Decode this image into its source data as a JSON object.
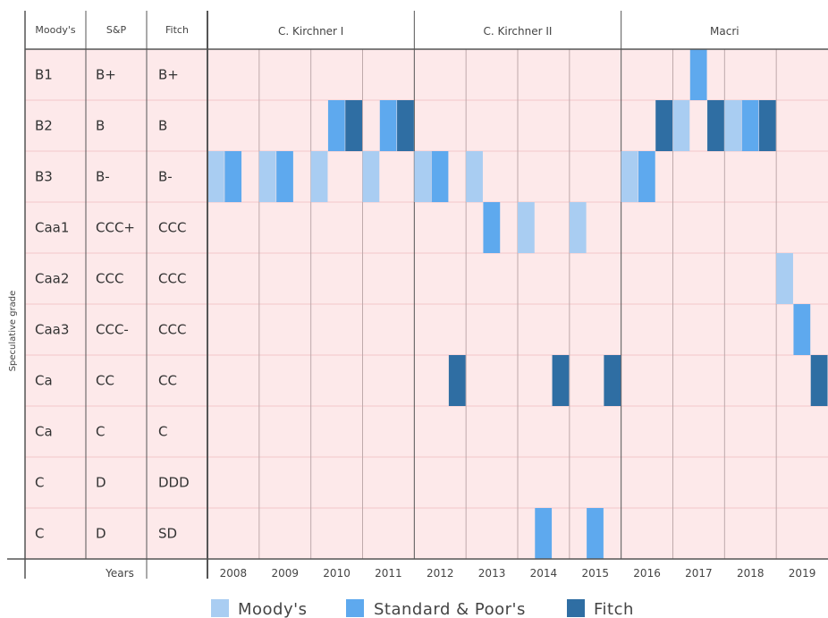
{
  "chart_data": {
    "type": "heatmap",
    "title": "",
    "agency_headers": [
      "Moody's",
      "S&P",
      "Fitch"
    ],
    "side_label": "Speculative grade",
    "years_label": "Years",
    "periods": [
      {
        "label": "C. Kirchner I",
        "years": [
          "2008",
          "2009",
          "2010",
          "2011"
        ]
      },
      {
        "label": "C. Kirchner II",
        "years": [
          "2012",
          "2013",
          "2014",
          "2015"
        ]
      },
      {
        "label": "Macri",
        "years": [
          "2016",
          "2017",
          "2018",
          "2019"
        ]
      }
    ],
    "years": [
      "2008",
      "2009",
      "2010",
      "2011",
      "2012",
      "2013",
      "2014",
      "2015",
      "2016",
      "2017",
      "2018",
      "2019"
    ],
    "ratings": [
      {
        "moodys": "B1",
        "sp": "B+",
        "fitch": "B+"
      },
      {
        "moodys": "B2",
        "sp": "B",
        "fitch": "B"
      },
      {
        "moodys": "B3",
        "sp": "B-",
        "fitch": "B-"
      },
      {
        "moodys": "Caa1",
        "sp": "CCC+",
        "fitch": "CCC"
      },
      {
        "moodys": "Caa2",
        "sp": "CCC",
        "fitch": "CCC"
      },
      {
        "moodys": "Caa3",
        "sp": "CCC-",
        "fitch": "CCC"
      },
      {
        "moodys": "Ca",
        "sp": "CC",
        "fitch": "CC"
      },
      {
        "moodys": "Ca",
        "sp": "C",
        "fitch": "C"
      },
      {
        "moodys": "C",
        "sp": "D",
        "fitch": "DDD"
      },
      {
        "moodys": "C",
        "sp": "D",
        "fitch": "SD"
      }
    ],
    "series": [
      {
        "name": "Moody's",
        "color": "#a9cdf2",
        "sub_slots": 6
      },
      {
        "name": "Standard & Poor's",
        "color": "#5ea9ee",
        "sub_slots": 6
      },
      {
        "name": "Fitch",
        "color": "#2f6ea3",
        "sub_slots": 6
      }
    ],
    "points": [
      {
        "series": "Moody's",
        "year": "2008",
        "slot": 0,
        "rating_row": 2
      },
      {
        "series": "Standard & Poor's",
        "year": "2008",
        "slot": 1,
        "rating_row": 2
      },
      {
        "series": "Moody's",
        "year": "2009",
        "slot": 0,
        "rating_row": 2
      },
      {
        "series": "Standard & Poor's",
        "year": "2009",
        "slot": 1,
        "rating_row": 2
      },
      {
        "series": "Moody's",
        "year": "2010",
        "slot": 0,
        "rating_row": 2
      },
      {
        "series": "Standard & Poor's",
        "year": "2010",
        "slot": 1,
        "rating_row": 1
      },
      {
        "series": "Fitch",
        "year": "2010",
        "slot": 2,
        "rating_row": 1
      },
      {
        "series": "Moody's",
        "year": "2011",
        "slot": 0,
        "rating_row": 2
      },
      {
        "series": "Standard & Poor's",
        "year": "2011",
        "slot": 1,
        "rating_row": 1
      },
      {
        "series": "Fitch",
        "year": "2011",
        "slot": 2,
        "rating_row": 1
      },
      {
        "series": "Moody's",
        "year": "2012",
        "slot": 0,
        "rating_row": 2
      },
      {
        "series": "Standard & Poor's",
        "year": "2012",
        "slot": 1,
        "rating_row": 2
      },
      {
        "series": "Fitch",
        "year": "2012",
        "slot": 2,
        "rating_row": 6
      },
      {
        "series": "Moody's",
        "year": "2013",
        "slot": 0,
        "rating_row": 2
      },
      {
        "series": "Standard & Poor's",
        "year": "2013",
        "slot": 1,
        "rating_row": 3
      },
      {
        "series": "Moody's",
        "year": "2014",
        "slot": 0,
        "rating_row": 3
      },
      {
        "series": "Standard & Poor's",
        "year": "2014",
        "slot": 1,
        "rating_row": 9
      },
      {
        "series": "Fitch",
        "year": "2014",
        "slot": 2,
        "rating_row": 6
      },
      {
        "series": "Moody's",
        "year": "2015",
        "slot": 0,
        "rating_row": 3
      },
      {
        "series": "Standard & Poor's",
        "year": "2015",
        "slot": 1,
        "rating_row": 9
      },
      {
        "series": "Fitch",
        "year": "2015",
        "slot": 2,
        "rating_row": 6
      },
      {
        "series": "Moody's",
        "year": "2016",
        "slot": 0,
        "rating_row": 2
      },
      {
        "series": "Standard & Poor's",
        "year": "2016",
        "slot": 1,
        "rating_row": 2
      },
      {
        "series": "Fitch",
        "year": "2016",
        "slot": 2,
        "rating_row": 1
      },
      {
        "series": "Moody's",
        "year": "2017",
        "slot": 0,
        "rating_row": 1
      },
      {
        "series": "Standard & Poor's",
        "year": "2017",
        "slot": 1,
        "rating_row": 0
      },
      {
        "series": "Fitch",
        "year": "2017",
        "slot": 2,
        "rating_row": 1
      },
      {
        "series": "Moody's",
        "year": "2018",
        "slot": 0,
        "rating_row": 1
      },
      {
        "series": "Standard & Poor's",
        "year": "2018",
        "slot": 1,
        "rating_row": 1
      },
      {
        "series": "Fitch",
        "year": "2018",
        "slot": 2,
        "rating_row": 1
      },
      {
        "series": "Moody's",
        "year": "2019",
        "slot": 0,
        "rating_row": 4
      },
      {
        "series": "Standard & Poor's",
        "year": "2019",
        "slot": 1,
        "rating_row": 5
      },
      {
        "series": "Fitch",
        "year": "2019",
        "slot": 2,
        "rating_row": 6
      }
    ],
    "colors": {
      "background": "#fde9ea",
      "grid": "#f3c7ca",
      "frame": "#555555"
    },
    "legend_position": "bottom-center"
  }
}
